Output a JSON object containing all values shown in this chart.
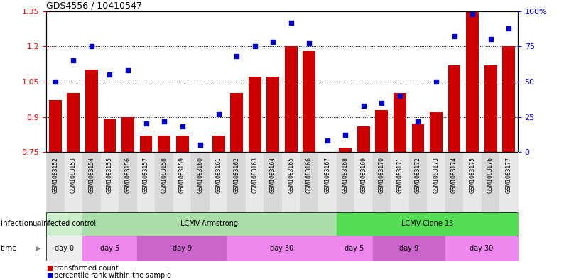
{
  "title": "GDS4556 / 10410547",
  "samples": [
    "GSM1083152",
    "GSM1083153",
    "GSM1083154",
    "GSM1083155",
    "GSM1083156",
    "GSM1083157",
    "GSM1083158",
    "GSM1083159",
    "GSM1083160",
    "GSM1083161",
    "GSM1083162",
    "GSM1083163",
    "GSM1083164",
    "GSM1083165",
    "GSM1083166",
    "GSM1083167",
    "GSM1083168",
    "GSM1083169",
    "GSM1083170",
    "GSM1083171",
    "GSM1083172",
    "GSM1083173",
    "GSM1083174",
    "GSM1083175",
    "GSM1083176",
    "GSM1083177"
  ],
  "bar_values": [
    0.97,
    1.0,
    1.1,
    0.89,
    0.9,
    0.82,
    0.82,
    0.82,
    0.75,
    0.82,
    1.0,
    1.07,
    1.07,
    1.2,
    1.18,
    0.75,
    0.77,
    0.86,
    0.93,
    1.0,
    0.87,
    0.92,
    1.12,
    1.35,
    1.12,
    1.2
  ],
  "percentile_values": [
    50,
    65,
    75,
    55,
    58,
    20,
    22,
    18,
    5,
    27,
    68,
    75,
    78,
    92,
    77,
    8,
    12,
    33,
    35,
    40,
    22,
    50,
    82,
    98,
    80,
    88
  ],
  "bar_color": "#cc0000",
  "percentile_color": "#0000cc",
  "ylim_left": [
    0.75,
    1.35
  ],
  "ylim_right": [
    0,
    100
  ],
  "yticks_left": [
    0.75,
    0.9,
    1.05,
    1.2,
    1.35
  ],
  "yticks_right": [
    0,
    25,
    50,
    75,
    100
  ],
  "ytick_labels_right": [
    "0",
    "25",
    "50",
    "75",
    "100%"
  ],
  "ytick_labels_left": [
    "0.75",
    "0.9",
    "1.05",
    "1.2",
    "1.35"
  ],
  "col_bg_even": "#d8d8d8",
  "col_bg_odd": "#e8e8e8",
  "infection_groups": [
    {
      "label": "uninfected control",
      "start": 0,
      "end": 2,
      "color": "#cceecc"
    },
    {
      "label": "LCMV-Armstrong",
      "start": 2,
      "end": 16,
      "color": "#aaddaa"
    },
    {
      "label": "LCMV-Clone 13",
      "start": 16,
      "end": 26,
      "color": "#55dd55"
    }
  ],
  "time_groups": [
    {
      "label": "day 0",
      "start": 0,
      "end": 2,
      "color": "#eeeeee"
    },
    {
      "label": "day 5",
      "start": 2,
      "end": 5,
      "color": "#ee88ee"
    },
    {
      "label": "day 9",
      "start": 5,
      "end": 10,
      "color": "#cc66cc"
    },
    {
      "label": "day 30",
      "start": 10,
      "end": 16,
      "color": "#ee88ee"
    },
    {
      "label": "day 5",
      "start": 16,
      "end": 18,
      "color": "#ee88ee"
    },
    {
      "label": "day 9",
      "start": 18,
      "end": 22,
      "color": "#cc66cc"
    },
    {
      "label": "day 30",
      "start": 22,
      "end": 26,
      "color": "#ee88ee"
    }
  ]
}
